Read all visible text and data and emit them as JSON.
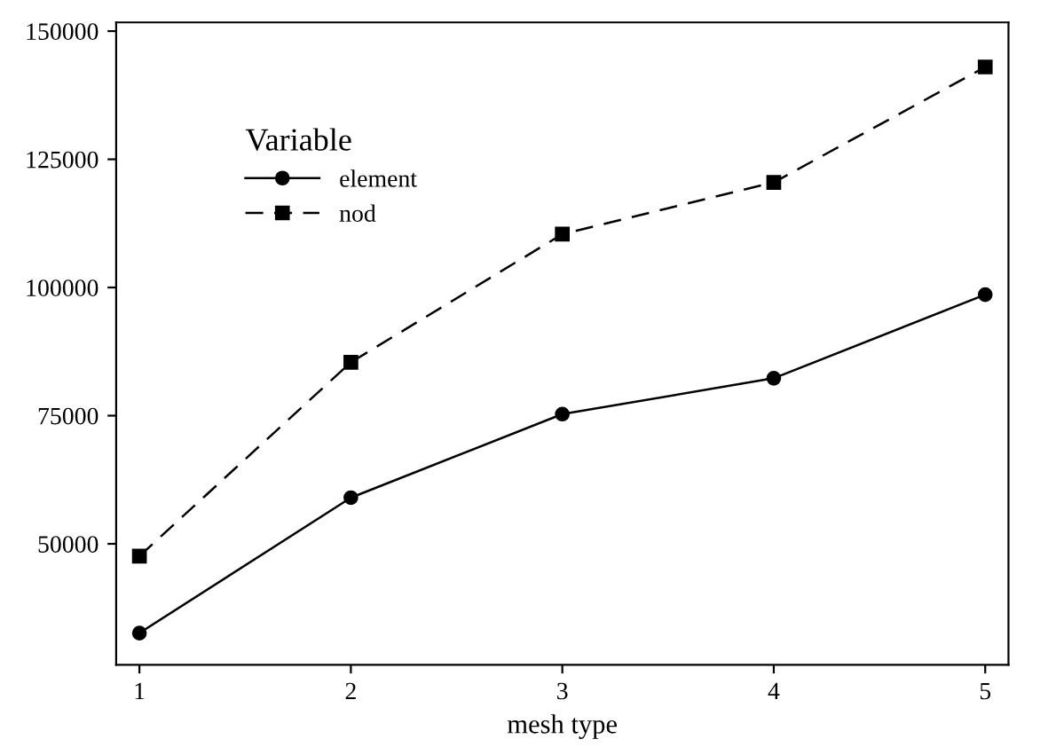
{
  "chart_data": {
    "type": "line",
    "xlabel": "mesh type",
    "legend_title": "Variable",
    "x": [
      1,
      2,
      3,
      4,
      5
    ],
    "series": [
      {
        "name": "element",
        "color": "#000000",
        "marker": "circle",
        "line_style": "solid",
        "values": [
          32600,
          59000,
          75300,
          82300,
          98600
        ]
      },
      {
        "name": "nod",
        "color": "#000000",
        "marker": "square",
        "line_style": "dashed",
        "values": [
          47600,
          85400,
          110400,
          120500,
          143000
        ]
      }
    ],
    "xlim": [
      0.89,
      5.11
    ],
    "xticks": [
      1,
      2,
      3,
      4,
      5
    ],
    "ylim": [
      26400,
      151700
    ],
    "yticks": [
      50000,
      75000,
      100000,
      125000,
      150000
    ],
    "grid": false,
    "legend": "top left"
  }
}
